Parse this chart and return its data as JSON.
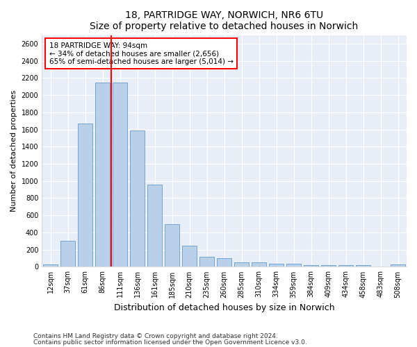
{
  "title1": "18, PARTRIDGE WAY, NORWICH, NR6 6TU",
  "title2": "Size of property relative to detached houses in Norwich",
  "xlabel": "Distribution of detached houses by size in Norwich",
  "ylabel": "Number of detached properties",
  "categories": [
    "12sqm",
    "37sqm",
    "61sqm",
    "86sqm",
    "111sqm",
    "136sqm",
    "161sqm",
    "185sqm",
    "210sqm",
    "235sqm",
    "260sqm",
    "285sqm",
    "310sqm",
    "334sqm",
    "359sqm",
    "384sqm",
    "409sqm",
    "434sqm",
    "458sqm",
    "483sqm",
    "508sqm"
  ],
  "values": [
    25,
    300,
    1670,
    2150,
    2150,
    1590,
    960,
    500,
    250,
    120,
    100,
    50,
    50,
    35,
    35,
    20,
    20,
    20,
    20,
    5,
    25
  ],
  "bar_color": "#b8d0ea",
  "bar_edge_color": "#6699cc",
  "vline_x_index": 3.5,
  "vline_color": "red",
  "annotation_line1": "18 PARTRIDGE WAY: 94sqm",
  "annotation_line2": "← 34% of detached houses are smaller (2,656)",
  "annotation_line3": "65% of semi-detached houses are larger (5,014) →",
  "annotation_box_color": "white",
  "annotation_box_edge_color": "red",
  "ylim": [
    0,
    2700
  ],
  "yticks": [
    0,
    200,
    400,
    600,
    800,
    1000,
    1200,
    1400,
    1600,
    1800,
    2000,
    2200,
    2400,
    2600
  ],
  "footnote1": "Contains HM Land Registry data © Crown copyright and database right 2024.",
  "footnote2": "Contains public sector information licensed under the Open Government Licence v3.0.",
  "bg_color": "#e8eef8",
  "grid_color": "white",
  "title1_fontsize": 10,
  "title2_fontsize": 9,
  "xlabel_fontsize": 9,
  "ylabel_fontsize": 8,
  "tick_fontsize": 7,
  "annotation_fontsize": 7.5,
  "footnote_fontsize": 6.5
}
